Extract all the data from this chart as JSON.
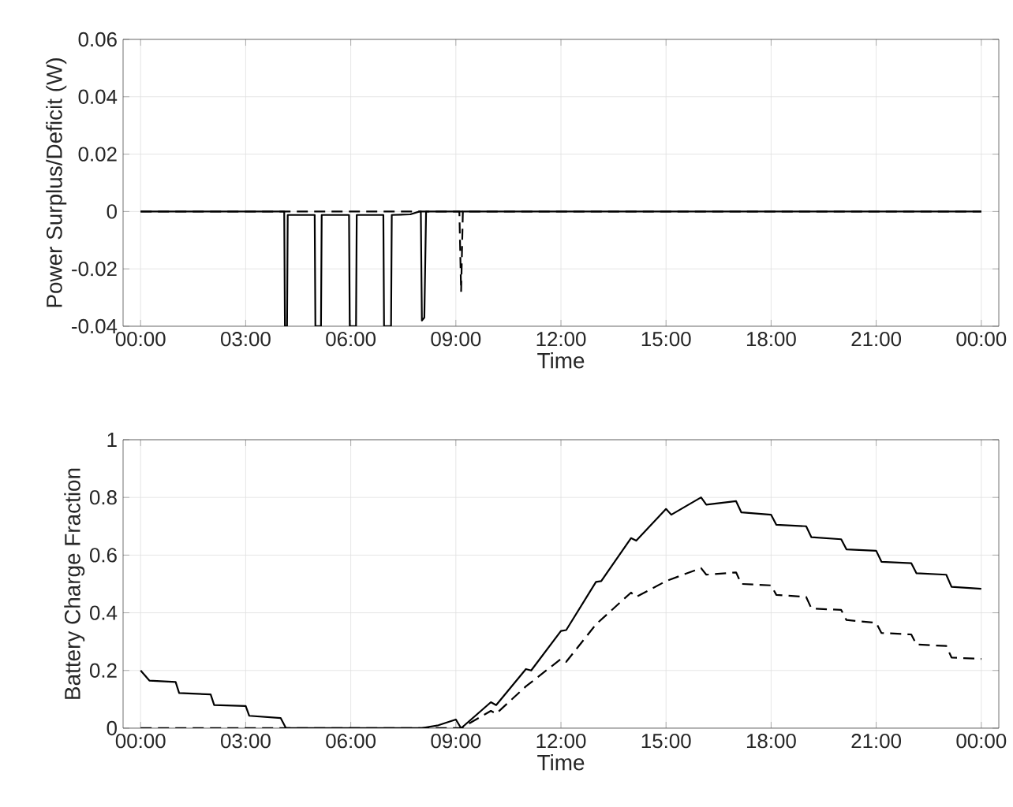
{
  "chart_data": [
    {
      "type": "line",
      "xlabel": "Time",
      "ylabel": "Power Surplus/Deficit (W)",
      "xlim": [
        -0.5,
        24.5
      ],
      "ylim": [
        -0.04,
        0.06
      ],
      "xticks": [
        {
          "value": 0,
          "label": "00:00"
        },
        {
          "value": 3,
          "label": "03:00"
        },
        {
          "value": 6,
          "label": "06:00"
        },
        {
          "value": 9,
          "label": "09:00"
        },
        {
          "value": 12,
          "label": "12:00"
        },
        {
          "value": 15,
          "label": "15:00"
        },
        {
          "value": 18,
          "label": "18:00"
        },
        {
          "value": 21,
          "label": "21:00"
        },
        {
          "value": 24,
          "label": "00:00"
        }
      ],
      "yticks": [
        -0.04,
        -0.02,
        0,
        0.02,
        0.04,
        0.06
      ],
      "grid": true,
      "marker": "none",
      "series": [
        {
          "color": "#000000",
          "line_style": "dashed",
          "x": [
            0,
            9.1,
            9.15,
            9.2,
            24
          ],
          "values": [
            0,
            0,
            -0.028,
            0,
            0
          ]
        },
        {
          "color": "#000000",
          "line_style": "solid",
          "x": [
            0,
            4.1,
            4.12,
            4.18,
            4.2,
            4.97,
            4.99,
            5.15,
            5.17,
            5.95,
            5.97,
            6.15,
            6.17,
            6.93,
            6.95,
            7.15,
            7.17,
            7.7,
            7.96,
            8.0,
            8.03,
            8.1,
            8.15,
            24
          ],
          "values": [
            0,
            0,
            -0.04,
            -0.04,
            -0.0012,
            -0.0012,
            -0.04,
            -0.04,
            -0.0012,
            -0.0012,
            -0.04,
            -0.04,
            -0.0012,
            -0.0012,
            -0.04,
            -0.04,
            -0.0012,
            -0.001,
            0,
            0,
            -0.038,
            -0.037,
            0,
            0
          ]
        }
      ]
    },
    {
      "type": "line",
      "xlabel": "Time",
      "ylabel": "Battery Charge Fraction",
      "xlim": [
        -0.5,
        24.5
      ],
      "ylim": [
        0,
        1
      ],
      "xticks": [
        {
          "value": 0,
          "label": "00:00"
        },
        {
          "value": 3,
          "label": "03:00"
        },
        {
          "value": 6,
          "label": "06:00"
        },
        {
          "value": 9,
          "label": "09:00"
        },
        {
          "value": 12,
          "label": "12:00"
        },
        {
          "value": 15,
          "label": "15:00"
        },
        {
          "value": 18,
          "label": "18:00"
        },
        {
          "value": 21,
          "label": "21:00"
        },
        {
          "value": 24,
          "label": "00:00"
        }
      ],
      "yticks": [
        0,
        0.2,
        0.4,
        0.6,
        0.8,
        1
      ],
      "grid": true,
      "marker": "none",
      "series": [
        {
          "color": "#000000",
          "line_style": "dashed",
          "x": [
            0,
            9.15,
            10,
            10.15,
            11,
            12,
            12.15,
            13,
            14,
            14.15,
            15,
            16,
            16.15,
            17,
            17.15,
            18,
            18.15,
            19,
            19.15,
            20,
            20.15,
            21,
            21.15,
            22,
            22.15,
            23,
            23.15,
            24
          ],
          "values": [
            0,
            0,
            0.06,
            0.05,
            0.145,
            0.24,
            0.23,
            0.36,
            0.47,
            0.455,
            0.51,
            0.555,
            0.532,
            0.54,
            0.5,
            0.495,
            0.462,
            0.455,
            0.415,
            0.41,
            0.375,
            0.365,
            0.33,
            0.325,
            0.29,
            0.285,
            0.245,
            0.24
          ]
        },
        {
          "color": "#000000",
          "line_style": "solid",
          "x": [
            0,
            0.25,
            1.0,
            1.1,
            2.0,
            2.1,
            3.0,
            3.1,
            4.0,
            4.15,
            8.0,
            8.5,
            9.0,
            9.15,
            10,
            10.15,
            11,
            11.15,
            12,
            12.15,
            13,
            13.15,
            14,
            14.15,
            15,
            15.15,
            16,
            16.15,
            17,
            17.15,
            18,
            18.15,
            19,
            19.15,
            20,
            20.15,
            21,
            21.15,
            22,
            22.15,
            23,
            23.15,
            24
          ],
          "values": [
            0.2,
            0.165,
            0.16,
            0.122,
            0.117,
            0.08,
            0.077,
            0.043,
            0.035,
            0,
            0,
            0.01,
            0.03,
            0,
            0.09,
            0.08,
            0.205,
            0.2,
            0.337,
            0.34,
            0.507,
            0.51,
            0.659,
            0.65,
            0.76,
            0.74,
            0.8,
            0.775,
            0.787,
            0.748,
            0.74,
            0.705,
            0.7,
            0.662,
            0.655,
            0.62,
            0.615,
            0.577,
            0.572,
            0.537,
            0.532,
            0.49,
            0.483
          ]
        }
      ]
    }
  ]
}
